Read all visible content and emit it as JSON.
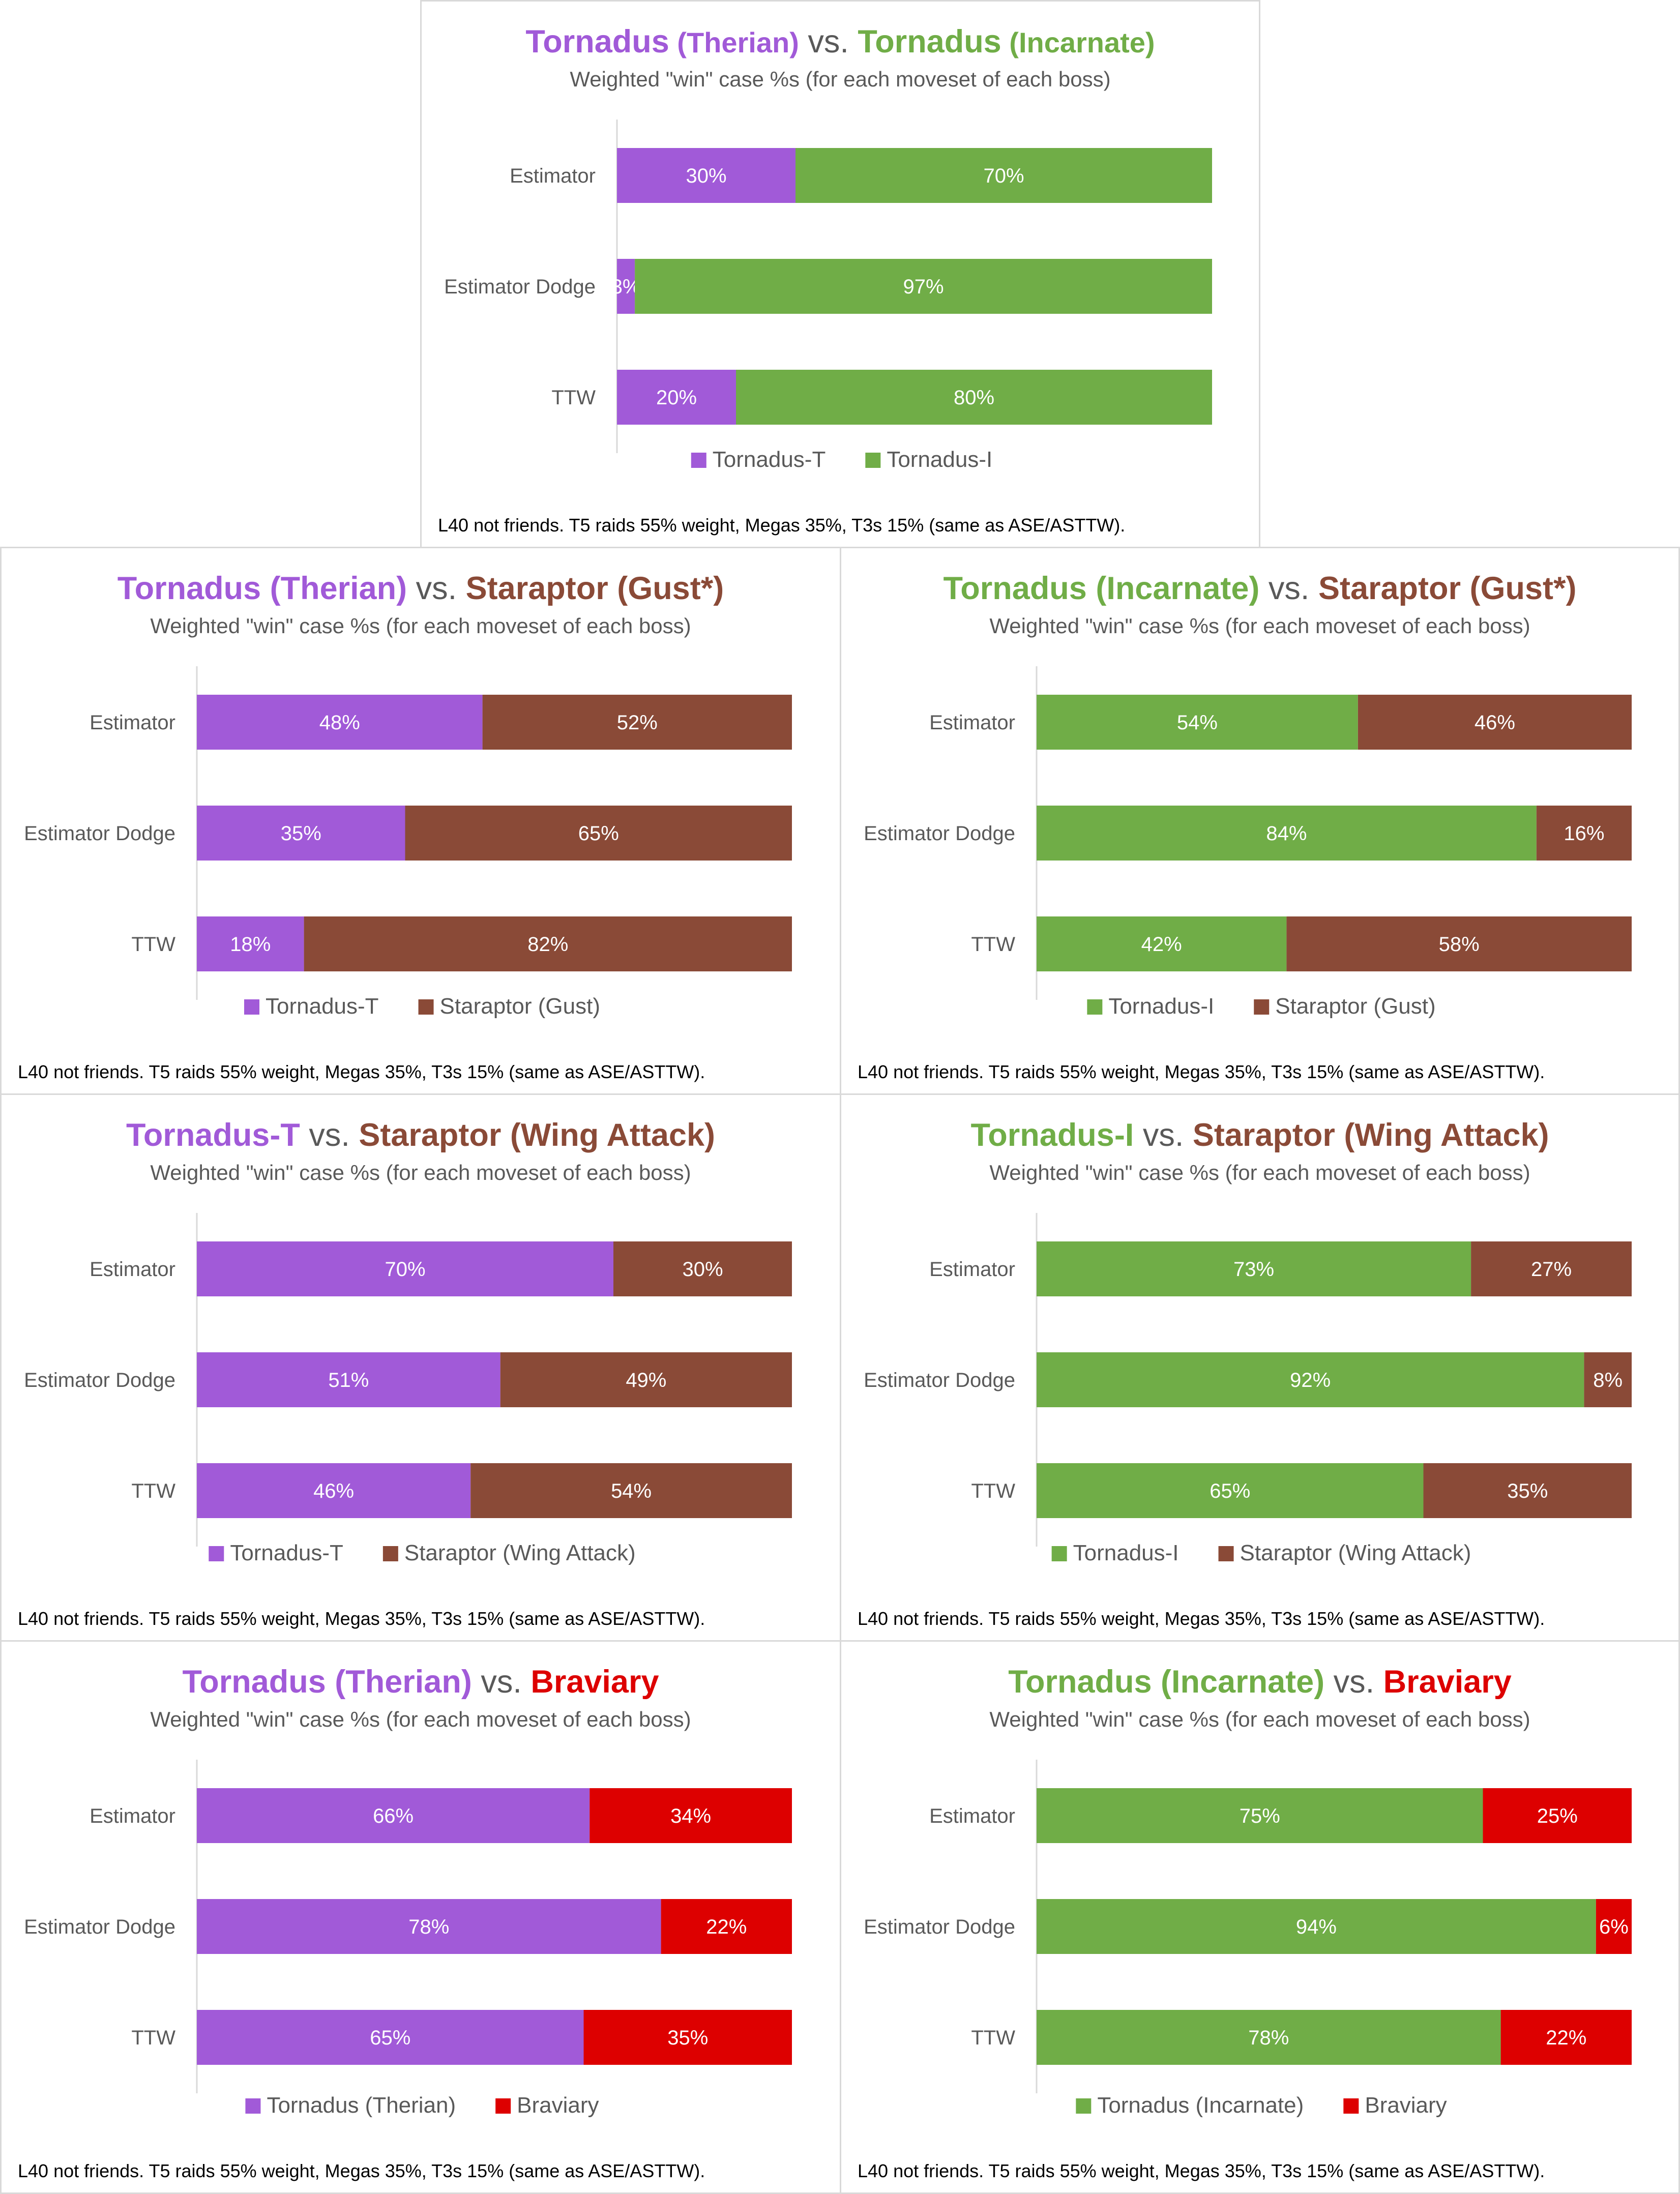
{
  "colors": {
    "therian": "#a15ad8",
    "incarnate": "#70ad47",
    "staraptor": "#8a4a37",
    "braviary": "#dd0000",
    "vs": "#595959",
    "subtitle": "#595959",
    "axis_label": "#595959",
    "bar_label": "#ffffff"
  },
  "chart_data": [
    {
      "id": "c0",
      "type": "bar",
      "stacked": true,
      "percent_stacked": true,
      "orientation": "horizontal",
      "title_parts": [
        {
          "text": "Tornadus",
          "color": "therian"
        },
        {
          "text": " (Therian)",
          "color": "therian",
          "small": true
        },
        {
          "text": " vs. ",
          "color": "vs",
          "plain": true
        },
        {
          "text": "Tornadus",
          "color": "incarnate"
        },
        {
          "text": " (Incarnate)",
          "color": "incarnate",
          "small": true
        }
      ],
      "subtitle": "Weighted \"win\" case %s (for each moveset of each boss)",
      "categories": [
        "Estimator",
        "Estimator Dodge",
        "TTW"
      ],
      "series": [
        {
          "name": "Tornadus-T",
          "color": "therian",
          "values": [
            30,
            3,
            20
          ],
          "labels": [
            "30%",
            "3%",
            "20%"
          ]
        },
        {
          "name": "Tornadus-I",
          "color": "incarnate",
          "values": [
            70,
            97,
            80
          ],
          "labels": [
            "70%",
            "97%",
            "80%"
          ]
        }
      ],
      "legend": "bottom",
      "footnote": "L40 not friends. T5 raids 55% weight, Megas 35%, T3s 15% (same as ASE/ASTTW)."
    },
    {
      "id": "c1",
      "type": "bar",
      "stacked": true,
      "percent_stacked": true,
      "orientation": "horizontal",
      "title_parts": [
        {
          "text": "Tornadus (Therian)",
          "color": "therian"
        },
        {
          "text": " vs. ",
          "color": "vs",
          "plain": true
        },
        {
          "text": "Staraptor (Gust*)",
          "color": "staraptor"
        }
      ],
      "subtitle": "Weighted \"win\" case %s (for each moveset of each boss)",
      "categories": [
        "Estimator",
        "Estimator Dodge",
        "TTW"
      ],
      "series": [
        {
          "name": "Tornadus-T",
          "color": "therian",
          "values": [
            48,
            35,
            18
          ],
          "labels": [
            "48%",
            "35%",
            "18%"
          ]
        },
        {
          "name": "Staraptor (Gust)",
          "color": "staraptor",
          "values": [
            52,
            65,
            82
          ],
          "labels": [
            "52%",
            "65%",
            "82%"
          ]
        }
      ],
      "legend": "bottom",
      "footnote": "L40 not friends. T5 raids 55% weight, Megas 35%, T3s 15% (same as ASE/ASTTW)."
    },
    {
      "id": "c2",
      "type": "bar",
      "stacked": true,
      "percent_stacked": true,
      "orientation": "horizontal",
      "title_parts": [
        {
          "text": "Tornadus (Incarnate)",
          "color": "incarnate"
        },
        {
          "text": " vs. ",
          "color": "vs",
          "plain": true
        },
        {
          "text": "Staraptor (Gust*)",
          "color": "staraptor"
        }
      ],
      "subtitle": "Weighted \"win\" case %s (for each moveset of each boss)",
      "categories": [
        "Estimator",
        "Estimator Dodge",
        "TTW"
      ],
      "series": [
        {
          "name": "Tornadus-I",
          "color": "incarnate",
          "values": [
            54,
            84,
            42
          ],
          "labels": [
            "54%",
            "84%",
            "42%"
          ]
        },
        {
          "name": "Staraptor (Gust)",
          "color": "staraptor",
          "values": [
            46,
            16,
            58
          ],
          "labels": [
            "46%",
            "16%",
            "58%"
          ]
        }
      ],
      "legend": "bottom",
      "footnote": "L40 not friends. T5 raids 55% weight, Megas 35%, T3s 15% (same as ASE/ASTTW)."
    },
    {
      "id": "c3",
      "type": "bar",
      "stacked": true,
      "percent_stacked": true,
      "orientation": "horizontal",
      "title_parts": [
        {
          "text": "Tornadus-T",
          "color": "therian"
        },
        {
          "text": " vs. ",
          "color": "vs",
          "plain": true
        },
        {
          "text": "Staraptor (Wing Attack)",
          "color": "staraptor"
        }
      ],
      "subtitle": "Weighted \"win\" case %s (for each moveset of each boss)",
      "categories": [
        "Estimator",
        "Estimator Dodge",
        "TTW"
      ],
      "series": [
        {
          "name": "Tornadus-T",
          "color": "therian",
          "values": [
            70,
            51,
            46
          ],
          "labels": [
            "70%",
            "51%",
            "46%"
          ]
        },
        {
          "name": "Staraptor (Wing Attack)",
          "color": "staraptor",
          "values": [
            30,
            49,
            54
          ],
          "labels": [
            "30%",
            "49%",
            "54%"
          ]
        }
      ],
      "legend": "bottom",
      "footnote": "L40 not friends. T5 raids 55% weight, Megas 35%, T3s 15% (same as ASE/ASTTW)."
    },
    {
      "id": "c4",
      "type": "bar",
      "stacked": true,
      "percent_stacked": true,
      "orientation": "horizontal",
      "title_parts": [
        {
          "text": "Tornadus-I",
          "color": "incarnate"
        },
        {
          "text": " vs. ",
          "color": "vs",
          "plain": true
        },
        {
          "text": "Staraptor (Wing Attack)",
          "color": "staraptor"
        }
      ],
      "subtitle": "Weighted \"win\" case %s (for each moveset of each boss)",
      "categories": [
        "Estimator",
        "Estimator Dodge",
        "TTW"
      ],
      "series": [
        {
          "name": "Tornadus-I",
          "color": "incarnate",
          "values": [
            73,
            92,
            65
          ],
          "labels": [
            "73%",
            "92%",
            "65%"
          ]
        },
        {
          "name": "Staraptor (Wing Attack)",
          "color": "staraptor",
          "values": [
            27,
            8,
            35
          ],
          "labels": [
            "27%",
            "8%",
            "35%"
          ]
        }
      ],
      "legend": "bottom",
      "footnote": "L40 not friends. T5 raids 55% weight, Megas 35%, T3s 15% (same as ASE/ASTTW)."
    },
    {
      "id": "c5",
      "type": "bar",
      "stacked": true,
      "percent_stacked": true,
      "orientation": "horizontal",
      "title_parts": [
        {
          "text": "Tornadus (Therian)",
          "color": "therian"
        },
        {
          "text": " vs. ",
          "color": "vs",
          "plain": true
        },
        {
          "text": "Braviary",
          "color": "braviary"
        }
      ],
      "subtitle": "Weighted \"win\" case %s (for each moveset of each boss)",
      "categories": [
        "Estimator",
        "Estimator Dodge",
        "TTW"
      ],
      "series": [
        {
          "name": "Tornadus (Therian)",
          "color": "therian",
          "values": [
            66,
            78,
            65
          ],
          "labels": [
            "66%",
            "78%",
            "65%"
          ]
        },
        {
          "name": "Braviary",
          "color": "braviary",
          "values": [
            34,
            22,
            35
          ],
          "labels": [
            "34%",
            "22%",
            "35%"
          ]
        }
      ],
      "legend": "bottom",
      "footnote": "L40 not friends. T5 raids 55% weight, Megas 35%, T3s 15% (same as ASE/ASTTW)."
    },
    {
      "id": "c6",
      "type": "bar",
      "stacked": true,
      "percent_stacked": true,
      "orientation": "horizontal",
      "title_parts": [
        {
          "text": "Tornadus (Incarnate)",
          "color": "incarnate"
        },
        {
          "text": " vs. ",
          "color": "vs",
          "plain": true
        },
        {
          "text": "Braviary",
          "color": "braviary"
        }
      ],
      "subtitle": "Weighted \"win\" case %s (for each moveset of each boss)",
      "categories": [
        "Estimator",
        "Estimator Dodge",
        "TTW"
      ],
      "series": [
        {
          "name": "Tornadus (Incarnate)",
          "color": "incarnate",
          "values": [
            75,
            94,
            78
          ],
          "labels": [
            "75%",
            "94%",
            "78%"
          ]
        },
        {
          "name": "Braviary",
          "color": "braviary",
          "values": [
            25,
            6,
            22
          ],
          "labels": [
            "25%",
            "6%",
            "22%"
          ]
        }
      ],
      "legend": "bottom",
      "footnote": "L40 not friends. T5 raids 55% weight, Megas 35%, T3s 15% (same as ASE/ASTTW)."
    }
  ]
}
